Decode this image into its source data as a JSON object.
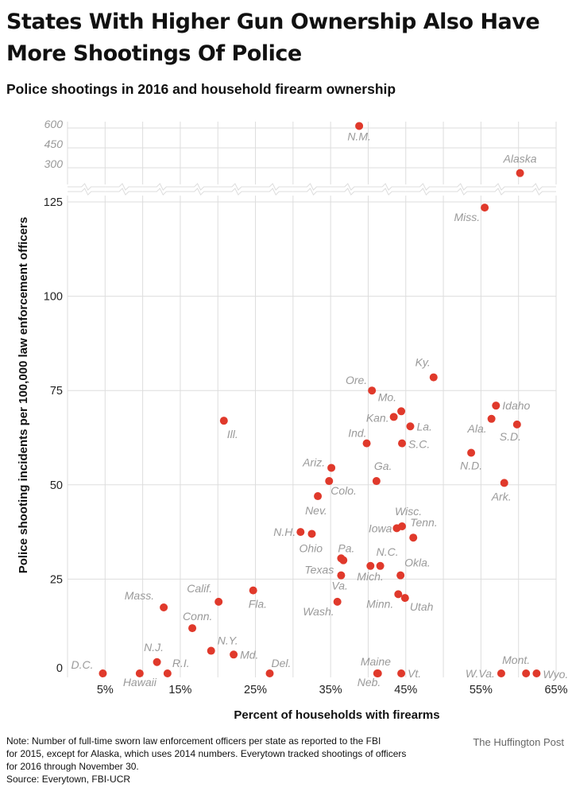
{
  "title": "States With Higher Gun Ownership Also Have More Shootings Of Police",
  "subtitle": "Police shootings in 2016 and household firearm ownership",
  "note": "Note:  Number of full-time sworn law enforcement officers per state as reported to the FBI\nfor 2015, except for Alaska, which uses 2014 numbers.  Everytown tracked shootings of officers\nfor 2016 through November 30.\nSource: Everytown, FBI-UCR",
  "credit": "The Huffington Post",
  "colors": {
    "point": "#e0392b",
    "grid": "#dddddd",
    "label": "#9a9a9a"
  },
  "chart_data": {
    "type": "scatter",
    "title": "Police shootings in 2016 and household firearm ownership",
    "xlabel": "Percent of households with firearms",
    "ylabel": "Police shooting incidents per 100,000 law enforcement officers",
    "xlim": [
      0,
      65
    ],
    "ylim": [
      0,
      125
    ],
    "x_ticks": [
      "5%",
      "15%",
      "25%",
      "35%",
      "45%",
      "55%",
      "65%"
    ],
    "x_tick_values": [
      5,
      15,
      25,
      35,
      45,
      55,
      65
    ],
    "y_ticks": [
      "0",
      "25",
      "50",
      "75",
      "100",
      "125"
    ],
    "y_tick_values": [
      0,
      25,
      50,
      75,
      100,
      125
    ],
    "broken_axis": {
      "upper_ticks": [
        "600",
        "450",
        "300"
      ],
      "upper_tick_values": [
        600,
        450,
        300
      ]
    },
    "grid": true,
    "points": [
      {
        "label": "D.C.",
        "x": 4.7,
        "y": 0
      },
      {
        "label": "Hawaii",
        "x": 9.6,
        "y": 0
      },
      {
        "label": "R.I.",
        "x": 13.3,
        "y": 0
      },
      {
        "label": "N.J.",
        "x": 11.9,
        "y": 3
      },
      {
        "label": "Mass.",
        "x": 12.8,
        "y": 17.5
      },
      {
        "label": "Conn.",
        "x": 16.6,
        "y": 12
      },
      {
        "label": "N.Y.",
        "x": 19.1,
        "y": 6
      },
      {
        "label": "Calif.",
        "x": 20.1,
        "y": 19
      },
      {
        "label": "Ill.",
        "x": 20.8,
        "y": 67
      },
      {
        "label": "Md.",
        "x": 22.1,
        "y": 5
      },
      {
        "label": "Fla.",
        "x": 24.7,
        "y": 22
      },
      {
        "label": "Del.",
        "x": 26.9,
        "y": 0
      },
      {
        "label": "N.H.",
        "x": 31,
        "y": 37.5
      },
      {
        "label": "Ohio",
        "x": 32.5,
        "y": 37
      },
      {
        "label": "Nev.",
        "x": 33.3,
        "y": 47
      },
      {
        "label": "Colo.",
        "x": 34.8,
        "y": 51
      },
      {
        "label": "Ariz.",
        "x": 35.1,
        "y": 54.5
      },
      {
        "label": "Wash.",
        "x": 35.9,
        "y": 19
      },
      {
        "label": "Va.",
        "x": 36.4,
        "y": 26
      },
      {
        "label": "Pa.",
        "x": 36.4,
        "y": 30.5
      },
      {
        "label": "Texas",
        "x": 36.7,
        "y": 30
      },
      {
        "label": "Ind.",
        "x": 39.8,
        "y": 61
      },
      {
        "label": "Mich.",
        "x": 40.3,
        "y": 28.5
      },
      {
        "label": "Ore.",
        "x": 40.5,
        "y": 75
      },
      {
        "label": "Ga.",
        "x": 41.1,
        "y": 51
      },
      {
        "label": "Maine",
        "x": 41.2,
        "y": 0
      },
      {
        "label": "Neb.",
        "x": 41.3,
        "y": 0
      },
      {
        "label": "N.C.",
        "x": 41.6,
        "y": 28.5
      },
      {
        "label": "Kan.",
        "x": 43.4,
        "y": 68
      },
      {
        "label": "Iowa",
        "x": 43.8,
        "y": 38.5
      },
      {
        "label": "Minn.",
        "x": 44,
        "y": 21
      },
      {
        "label": "Okla.",
        "x": 44.3,
        "y": 26
      },
      {
        "label": "Mo.",
        "x": 44.4,
        "y": 69.5
      },
      {
        "label": "Wisc.",
        "x": 44.5,
        "y": 39
      },
      {
        "label": "S.C.",
        "x": 44.5,
        "y": 61
      },
      {
        "label": "Vt.",
        "x": 44.4,
        "y": 0
      },
      {
        "label": "Utah",
        "x": 44.9,
        "y": 20
      },
      {
        "label": "La.",
        "x": 45.6,
        "y": 65.5
      },
      {
        "label": "Tenn.",
        "x": 46,
        "y": 36
      },
      {
        "label": "Ky.",
        "x": 48.7,
        "y": 78.5
      },
      {
        "label": "N.D.",
        "x": 53.7,
        "y": 58.5
      },
      {
        "label": "Miss.",
        "x": 55.5,
        "y": 123.5
      },
      {
        "label": "Ala.",
        "x": 56.4,
        "y": 67.5
      },
      {
        "label": "Idaho",
        "x": 57,
        "y": 71
      },
      {
        "label": "W.Va.",
        "x": 57.7,
        "y": 0
      },
      {
        "label": "Ark.",
        "x": 58.1,
        "y": 50.5
      },
      {
        "label": "S.D.",
        "x": 59.8,
        "y": 66
      },
      {
        "label": "Mont.",
        "x": 61,
        "y": 0
      },
      {
        "label": "Wyo.",
        "x": 62.4,
        "y": 0
      }
    ],
    "upper_points": [
      {
        "label": "N.M.",
        "x": 38.8,
        "y": 615
      },
      {
        "label": "Alaska",
        "x": 60.2,
        "y": 260
      }
    ]
  }
}
